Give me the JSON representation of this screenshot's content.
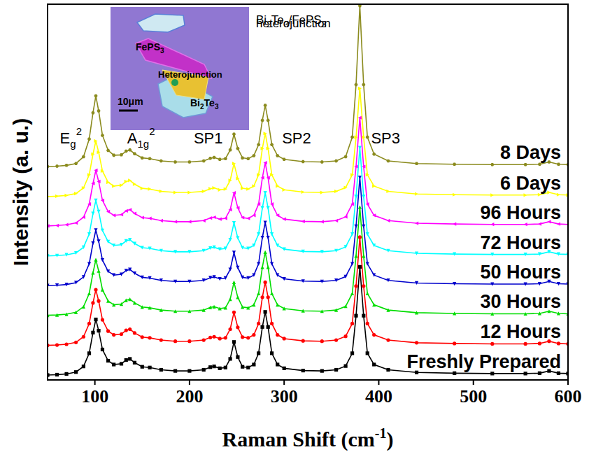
{
  "chart_data": {
    "type": "line",
    "x_label": "Raman Shift (cm-1)",
    "y_label": "Intensity (a. u.)",
    "xlim": [
      50,
      600
    ],
    "xticks": [
      100,
      200,
      300,
      400,
      500,
      600
    ],
    "ylim": [
      0,
      100
    ],
    "tick_labels": "x",
    "grid": false,
    "x": [
      50,
      60,
      70,
      80,
      88,
      94,
      98,
      101,
      104,
      108,
      114,
      120,
      128,
      133,
      137,
      142,
      150,
      158,
      170,
      185,
      200,
      215,
      222,
      226,
      232,
      238,
      243,
      247,
      251,
      256,
      262,
      268,
      273,
      277,
      280,
      283,
      287,
      293,
      300,
      320,
      340,
      355,
      365,
      372,
      376,
      380,
      384,
      388,
      395,
      410,
      440,
      480,
      520,
      555,
      570,
      580,
      590,
      600
    ],
    "annotations": [
      {
        "text": "E",
        "sub": "g",
        "sup": "2",
        "x": 101
      },
      {
        "text": "A",
        "sub": "1g",
        "sup": "2",
        "x": 137
      },
      {
        "text": "SP1",
        "x": 247
      },
      {
        "text": "SP2",
        "x": 280
      },
      {
        "text": "SP3",
        "x": 380
      }
    ],
    "inset": {
      "title": "Bi2Te3/FePS3 heterojunction",
      "labels": [
        "FePS3",
        "Heterojunction",
        "Bi2Te3"
      ],
      "scale_bar": "10μm"
    },
    "series": [
      {
        "name": "Freshly Prepared",
        "color": "#000000",
        "marker": "square",
        "values": [
          1.3,
          1.4,
          1.6,
          2.1,
          3.6,
          7.1,
          12.6,
          16.1,
          13.1,
          8.1,
          5.1,
          4.1,
          4.3,
          5.3,
          5.6,
          4.6,
          3.5,
          3.3,
          2.7,
          2.4,
          2.4,
          2.7,
          3.4,
          3.6,
          3.1,
          3.3,
          5.6,
          10.1,
          6.1,
          3.5,
          3.3,
          4.1,
          7.1,
          14.1,
          18.1,
          14.1,
          7.1,
          4.1,
          3.1,
          2.5,
          2.4,
          2.7,
          3.7,
          7.1,
          17.1,
          30.1,
          17.1,
          7.1,
          4.1,
          2.7,
          2.0,
          1.8,
          1.7,
          1.7,
          1.8,
          2.4,
          1.8,
          1.7
        ]
      },
      {
        "name": "12 Hours",
        "color": "#ff0000",
        "marker": "circle",
        "values": [
          9.2,
          9.3,
          9.5,
          10.0,
          11.5,
          15.0,
          20.5,
          24.0,
          21.0,
          16.0,
          13.0,
          12.0,
          12.2,
          13.2,
          13.5,
          12.5,
          11.4,
          11.2,
          10.6,
          10.3,
          10.3,
          10.6,
          11.3,
          11.5,
          11.0,
          11.2,
          13.5,
          18.0,
          14.0,
          11.4,
          11.2,
          12.0,
          15.0,
          22.0,
          26.0,
          22.0,
          15.0,
          12.0,
          11.0,
          10.4,
          10.3,
          10.6,
          11.6,
          15.0,
          25.0,
          38.0,
          25.0,
          15.0,
          12.0,
          10.6,
          9.9,
          9.7,
          9.6,
          9.6,
          9.7,
          10.3,
          9.7,
          9.6
        ]
      },
      {
        "name": "30 Hours",
        "color": "#00dd00",
        "marker": "triangle-up",
        "values": [
          17.2,
          17.3,
          17.5,
          18.0,
          19.5,
          23.0,
          28.5,
          32.0,
          29.0,
          24.0,
          21.0,
          20.0,
          20.2,
          21.2,
          21.5,
          20.5,
          19.4,
          19.2,
          18.6,
          18.3,
          18.3,
          18.6,
          19.3,
          19.5,
          19.0,
          19.2,
          21.5,
          26.0,
          22.0,
          19.4,
          19.2,
          20.0,
          23.0,
          30.0,
          34.0,
          30.0,
          23.0,
          20.0,
          19.0,
          18.4,
          18.3,
          18.6,
          19.6,
          23.0,
          33.0,
          46.0,
          33.0,
          23.0,
          20.0,
          18.6,
          17.9,
          17.7,
          17.6,
          17.6,
          17.7,
          18.3,
          17.7,
          17.6
        ]
      },
      {
        "name": "50 Hours",
        "color": "#0000cc",
        "marker": "triangle-down",
        "values": [
          25.1,
          25.2,
          25.4,
          25.9,
          27.4,
          30.9,
          36.4,
          39.9,
          36.9,
          31.9,
          28.9,
          27.9,
          28.1,
          29.1,
          29.4,
          28.4,
          27.3,
          27.1,
          26.5,
          26.2,
          26.2,
          26.5,
          27.2,
          27.4,
          26.9,
          27.1,
          29.4,
          33.9,
          29.9,
          27.3,
          27.1,
          27.9,
          30.9,
          37.9,
          41.9,
          37.9,
          30.9,
          27.9,
          26.9,
          26.3,
          26.2,
          26.5,
          27.5,
          30.9,
          40.9,
          53.9,
          40.9,
          30.9,
          27.9,
          26.5,
          25.8,
          25.6,
          25.5,
          25.5,
          25.6,
          26.2,
          25.6,
          25.5
        ]
      },
      {
        "name": "72 Hours",
        "color": "#00ffff",
        "marker": "triangle-down",
        "values": [
          33.0,
          33.1,
          33.3,
          33.8,
          35.3,
          38.8,
          44.3,
          47.8,
          44.8,
          39.8,
          36.8,
          35.8,
          36.0,
          37.0,
          37.3,
          36.3,
          35.2,
          35.0,
          34.4,
          34.1,
          34.1,
          34.4,
          35.1,
          35.3,
          34.8,
          35.0,
          37.3,
          41.8,
          37.8,
          35.2,
          35.0,
          35.8,
          38.8,
          45.8,
          49.8,
          45.8,
          38.8,
          35.8,
          34.8,
          34.2,
          34.1,
          34.4,
          35.4,
          38.8,
          48.8,
          61.8,
          48.8,
          38.8,
          35.8,
          34.4,
          33.7,
          33.5,
          33.4,
          33.4,
          33.5,
          34.1,
          33.5,
          33.4
        ]
      },
      {
        "name": "96 Hours",
        "color": "#ff00ff",
        "marker": "triangle-left",
        "values": [
          41.0,
          41.1,
          41.3,
          41.8,
          43.3,
          46.8,
          52.3,
          55.8,
          52.8,
          47.8,
          44.8,
          43.8,
          44.0,
          45.0,
          45.3,
          44.3,
          43.2,
          43.0,
          42.4,
          42.1,
          42.1,
          42.4,
          43.1,
          43.3,
          42.8,
          43.0,
          45.3,
          49.8,
          45.8,
          43.2,
          43.0,
          43.8,
          46.8,
          53.8,
          57.8,
          53.8,
          46.8,
          43.8,
          42.8,
          42.2,
          42.1,
          42.4,
          43.4,
          46.8,
          56.8,
          69.8,
          56.8,
          46.8,
          43.8,
          42.4,
          41.7,
          41.5,
          41.4,
          41.4,
          41.5,
          42.1,
          41.5,
          41.4
        ]
      },
      {
        "name": "6 Days",
        "color": "#ffff00",
        "marker": "triangle-right",
        "values": [
          48.8,
          48.9,
          49.1,
          49.6,
          51.1,
          54.6,
          60.1,
          63.6,
          60.6,
          55.6,
          52.6,
          51.6,
          51.8,
          52.8,
          53.1,
          52.1,
          51.0,
          50.8,
          50.2,
          49.9,
          49.9,
          50.2,
          50.9,
          51.1,
          50.6,
          50.8,
          53.1,
          57.6,
          53.6,
          51.0,
          50.8,
          51.6,
          54.6,
          61.6,
          65.6,
          61.6,
          54.6,
          51.6,
          50.6,
          50.0,
          49.9,
          50.2,
          51.2,
          54.6,
          64.6,
          77.6,
          64.6,
          54.6,
          51.6,
          50.2,
          49.5,
          49.3,
          49.2,
          49.2,
          49.3,
          49.9,
          49.3,
          49.2
        ]
      },
      {
        "name": "8 Days",
        "color": "#8b8b1e",
        "marker": "hexagon",
        "values": [
          56.8,
          56.9,
          57.1,
          57.6,
          59.4,
          64.1,
          71.1,
          75.6,
          71.6,
          65.1,
          61.1,
          59.8,
          59.9,
          60.9,
          61.2,
          60.2,
          59.1,
          58.9,
          58.3,
          58.0,
          58.0,
          58.3,
          59.0,
          59.2,
          58.7,
          58.9,
          61.2,
          65.4,
          61.6,
          59.1,
          58.9,
          59.7,
          62.6,
          69.1,
          73.1,
          69.1,
          62.6,
          59.7,
          58.7,
          58.1,
          58.0,
          58.3,
          59.4,
          64.6,
          78.6,
          99.6,
          78.6,
          64.6,
          60.1,
          58.3,
          57.6,
          57.4,
          57.3,
          57.3,
          57.4,
          58.0,
          57.4,
          57.3
        ]
      }
    ]
  }
}
